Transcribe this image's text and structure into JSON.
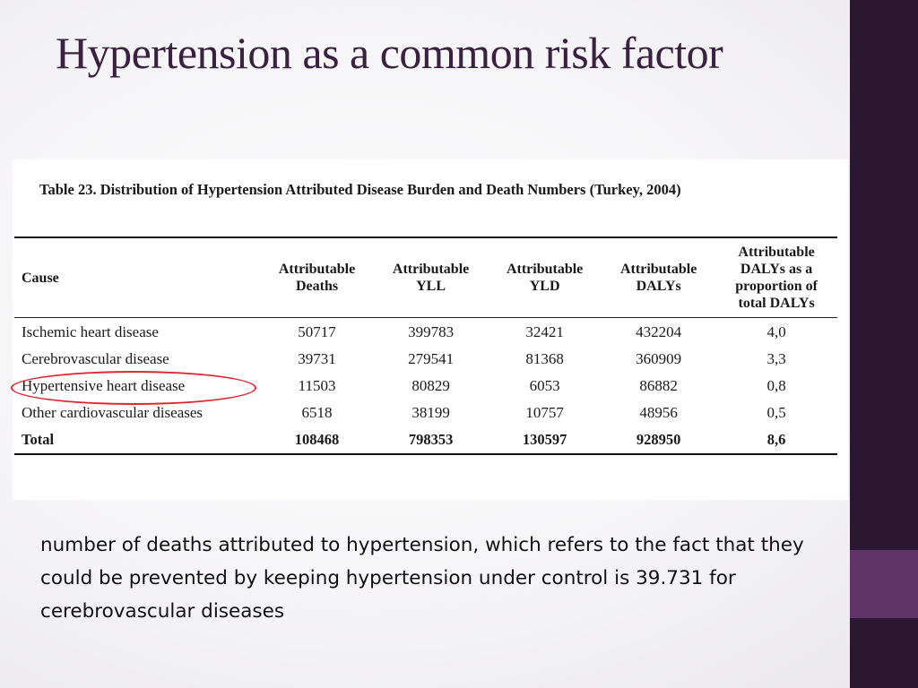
{
  "slide": {
    "title": "Hypertension as a common risk factor",
    "body_text": "number of deaths attributed to hypertension, which refers to the fact that they could be prevented by keeping hypertension under control is 39.731 for cerebrovascular diseases",
    "colors": {
      "title": "#3a2140",
      "side_bar": "#2b1730",
      "side_accent": "#5f3566",
      "highlight": "#e0262e"
    }
  },
  "table": {
    "caption": "Table 23. Distribution of Hypertension Attributed Disease Burden and Death Numbers (Turkey, 2004)",
    "headers": {
      "cause": "Cause",
      "deaths": [
        "Attributable",
        "Deaths"
      ],
      "yll": [
        "Attributable",
        "YLL"
      ],
      "yld": [
        "Attributable",
        "YLD"
      ],
      "dalys": [
        "Attributable",
        "DALYs"
      ],
      "proportion": [
        "Attributable",
        "DALYs as a",
        "proportion of",
        "total DALYs"
      ]
    },
    "rows": [
      {
        "cause": "Ischemic heart disease",
        "deaths": "50717",
        "yll": "399783",
        "yld": "32421",
        "dalys": "432204",
        "proportion": "4,0"
      },
      {
        "cause": "Cerebrovascular disease",
        "deaths": "39731",
        "yll": "279541",
        "yld": "81368",
        "dalys": "360909",
        "proportion": "3,3"
      },
      {
        "cause": "Hypertensive heart disease",
        "deaths": "11503",
        "yll": "80829",
        "yld": "6053",
        "dalys": "86882",
        "proportion": "0,8"
      },
      {
        "cause": "Other cardiovascular diseases",
        "deaths": "6518",
        "yll": "38199",
        "yld": "10757",
        "dalys": "48956",
        "proportion": "0,5"
      }
    ],
    "total": {
      "cause": "Total",
      "deaths": "108468",
      "yll": "798353",
      "yld": "130597",
      "dalys": "928950",
      "proportion": "8,6"
    }
  }
}
